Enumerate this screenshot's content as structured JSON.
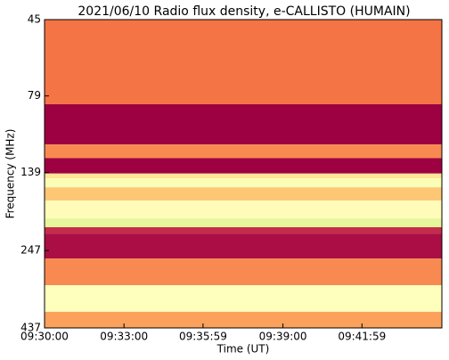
{
  "chart_data": {
    "type": "spectrogram",
    "title": "2021/06/10  Radio flux density, e-CALLISTO (HUMAIN)",
    "xlabel": "Time (UT)",
    "ylabel": "Frequency (MHz)",
    "xlim": [
      "09:30:00",
      "09:45:00"
    ],
    "xticks": [
      "09:30:00",
      "09:33:00",
      "09:35:59",
      "09:39:00",
      "09:41:59"
    ],
    "ylim": [
      45,
      437
    ],
    "yscale": "log",
    "yinverted": true,
    "yticks": [
      45,
      79,
      139,
      247,
      437
    ],
    "y_edges": [
      45,
      84,
      113,
      125,
      140,
      145,
      155,
      171,
      195,
      208,
      218,
      262,
      319,
      388,
      437
    ],
    "z": [
      0.3,
      0.0,
      0.35,
      0.0,
      0.6,
      0.75,
      0.5,
      0.7,
      0.85,
      0.1,
      0.03,
      0.35,
      0.72,
      0.4
    ],
    "zlim": [
      0,
      1
    ],
    "colormap": [
      "#9e0142",
      "#d53e4f",
      "#f46d43",
      "#fdae61",
      "#fee08b",
      "#ffffbf",
      "#e6f598",
      "#abdda4"
    ]
  }
}
